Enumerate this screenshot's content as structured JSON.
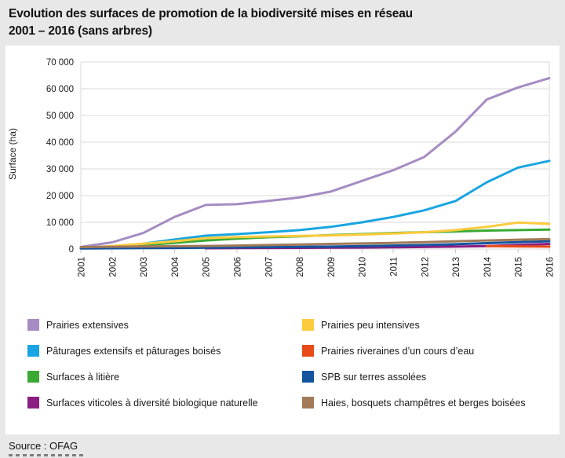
{
  "title": {
    "line1": "Evolution des surfaces de promotion de la biodiversité mises en réseau",
    "line2": "2001 – 2016 (sans arbres)"
  },
  "source": "Source : OFAG",
  "chart_data": {
    "type": "line",
    "title": "Evolution des surfaces de promotion de la biodiversité mises en réseau 2001 – 2016 (sans arbres)",
    "xlabel": "",
    "ylabel": "Surface (ha)",
    "ylim": [
      0,
      70000
    ],
    "ytick_step": 10000,
    "grid": true,
    "legend_position": "bottom",
    "colors": {
      "grid": "#d8d8d8",
      "axis_text": "#1a1a1a",
      "panel_background": "#ffffff",
      "page_background": "#e8e8e8"
    },
    "categories": [
      "2001",
      "2002",
      "2003",
      "2004",
      "2005",
      "2006",
      "2007",
      "2008",
      "2009",
      "2010",
      "2011",
      "2012",
      "2013",
      "2014",
      "2015",
      "2016"
    ],
    "series": [
      {
        "name": "Prairies extensives",
        "color": "#a58cc2",
        "column": "left",
        "width": 3,
        "values": [
          800,
          2500,
          6000,
          12000,
          16500,
          16800,
          18000,
          19300,
          21500,
          25500,
          29500,
          34500,
          44000,
          56000,
          60500,
          64000
        ]
      },
      {
        "name": "Pâturages extensifs et pâturages boisés",
        "color": "#19a5e1",
        "column": "left",
        "width": 3,
        "values": [
          300,
          900,
          2000,
          3600,
          5000,
          5600,
          6300,
          7100,
          8300,
          10000,
          12000,
          14500,
          18000,
          25000,
          30500,
          33000
        ]
      },
      {
        "name": "Surfaces à litière",
        "color": "#3baa34",
        "column": "left",
        "width": 3,
        "values": [
          300,
          800,
          1500,
          2300,
          3200,
          3900,
          4400,
          4800,
          5200,
          5600,
          6000,
          6300,
          6600,
          6900,
          7100,
          7300
        ]
      },
      {
        "name": "Surfaces viticoles à diversité biologique naturelle",
        "color": "#8c1d82",
        "column": "left",
        "width": 3,
        "values": [
          null,
          null,
          null,
          null,
          300,
          350,
          400,
          450,
          500,
          550,
          650,
          750,
          900,
          1100,
          1500,
          1900
        ]
      },
      {
        "name": "Prairies peu intensives",
        "color": "#fccb3e",
        "column": "right",
        "width": 3,
        "values": [
          400,
          1100,
          2000,
          2900,
          4100,
          4500,
          4700,
          4900,
          5100,
          5400,
          5800,
          6300,
          7100,
          8300,
          9900,
          9400
        ]
      },
      {
        "name": "Prairies riveraines d’un cours d’eau",
        "color": "#e84a18",
        "column": "right",
        "width": 3,
        "values": [
          null,
          null,
          null,
          null,
          null,
          null,
          null,
          null,
          null,
          null,
          null,
          null,
          null,
          1100,
          1000,
          900
        ]
      },
      {
        "name": "SPB sur terres assolées",
        "color": "#15539f",
        "column": "right",
        "width": 3,
        "values": [
          200,
          300,
          350,
          400,
          500,
          600,
          700,
          800,
          900,
          1100,
          1300,
          1500,
          1800,
          2200,
          2600,
          2900
        ]
      },
      {
        "name": "Haies, bosquets champêtres et berges boisées",
        "color": "#a27a58",
        "column": "right",
        "width": 3,
        "values": [
          700,
          850,
          950,
          1050,
          1150,
          1300,
          1500,
          1700,
          1900,
          2100,
          2300,
          2600,
          2900,
          3200,
          3500,
          3700
        ]
      }
    ]
  }
}
